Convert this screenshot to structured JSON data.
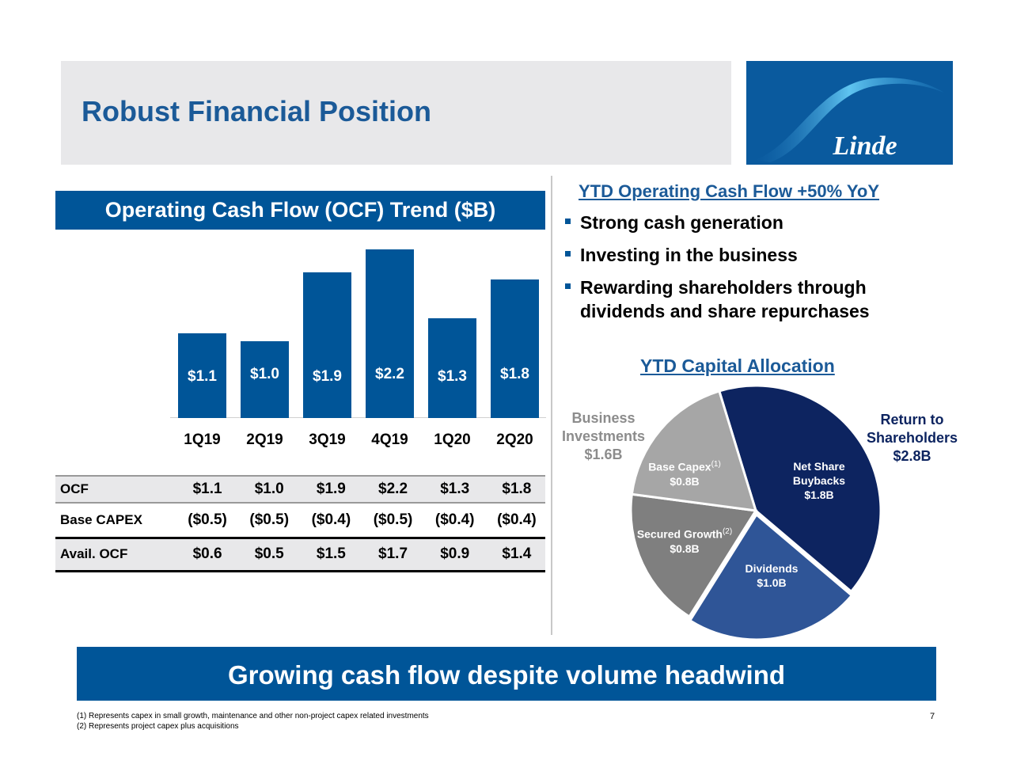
{
  "header": {
    "title": "Robust Financial Position",
    "logo_text": "Linde"
  },
  "left": {
    "heading": "Operating Cash Flow (OCF) Trend ($B)"
  },
  "chart_data": [
    {
      "type": "bar",
      "title": "Operating Cash Flow (OCF) Trend ($B)",
      "categories": [
        "1Q19",
        "2Q19",
        "3Q19",
        "4Q19",
        "1Q20",
        "2Q20"
      ],
      "values": [
        1.1,
        1.0,
        1.9,
        2.2,
        1.3,
        1.8
      ],
      "data_labels": [
        "$1.1",
        "$1.0",
        "$1.9",
        "$2.2",
        "$1.3",
        "$1.8"
      ],
      "color": "#005598",
      "grid": false
    },
    {
      "type": "pie",
      "title": "YTD Capital Allocation",
      "slices": [
        {
          "label": "Net Share Buybacks",
          "value": 1.8,
          "value_label": "$1.8B",
          "group": "Return to Shareholders",
          "color": "#0d2460"
        },
        {
          "label": "Dividends",
          "value": 1.0,
          "value_label": "$1.0B",
          "group": "Return to Shareholders",
          "color": "#2f5597"
        },
        {
          "label": "Secured Growth",
          "value": 0.8,
          "value_label": "$0.8B",
          "footnote": "(2)",
          "group": "Business Investments",
          "color": "#7f7f7f"
        },
        {
          "label": "Base Capex",
          "value": 0.8,
          "value_label": "$0.8B",
          "footnote": "(1)",
          "group": "Business Investments",
          "color": "#a6a6a6"
        }
      ],
      "groups": [
        {
          "name": "Business Investments",
          "line1": "Business",
          "line2": "Investments",
          "value_label": "$1.6B",
          "color": "#8c8c8c"
        },
        {
          "name": "Return to Shareholders",
          "line1": "Return to",
          "line2": "Shareholders",
          "value_label": "$2.8B",
          "color": "#0d2460"
        }
      ]
    }
  ],
  "table": {
    "rows": [
      {
        "label": "OCF",
        "values": [
          "$1.1",
          "$1.0",
          "$1.9",
          "$2.2",
          "$1.3",
          "$1.8"
        ]
      },
      {
        "label": "Base CAPEX",
        "values": [
          "($0.5)",
          "($0.5)",
          "($0.4)",
          "($0.5)",
          "($0.4)",
          "($0.4)"
        ]
      },
      {
        "label": "Avail. OCF",
        "values": [
          "$0.6",
          "$0.5",
          "$1.5",
          "$1.7",
          "$0.9",
          "$1.4"
        ]
      }
    ]
  },
  "right": {
    "heading": "YTD Operating Cash Flow +50% YoY",
    "bullets": [
      "Strong cash generation",
      "Investing in the business",
      "Rewarding shareholders through",
      "dividends and share repurchases"
    ]
  },
  "banner": "Growing cash flow despite volume headwind",
  "footnotes": [
    "(1) Represents capex in small growth, maintenance and other non-project capex related investments",
    "(2) Represents project capex plus acquisitions"
  ],
  "page_number": "7"
}
